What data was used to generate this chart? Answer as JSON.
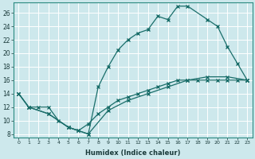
{
  "xlabel": "Humidex (Indice chaleur)",
  "ylabel": "",
  "xlim": [
    -0.5,
    23.5
  ],
  "ylim": [
    7.5,
    27.5
  ],
  "xticks": [
    0,
    1,
    2,
    3,
    4,
    5,
    6,
    7,
    8,
    9,
    10,
    11,
    12,
    13,
    14,
    15,
    16,
    17,
    18,
    19,
    20,
    21,
    22,
    23
  ],
  "yticks": [
    8,
    10,
    12,
    14,
    16,
    18,
    20,
    22,
    24,
    26
  ],
  "bg_color": "#cde8ec",
  "line_color": "#1a6e6a",
  "line1_x": [
    0,
    1,
    2,
    3,
    4,
    5,
    6,
    7,
    8,
    9,
    10,
    11,
    12,
    13,
    14,
    15,
    16,
    17,
    18,
    19,
    20,
    21,
    22,
    23
  ],
  "line1_y": [
    14,
    12,
    12,
    12,
    10,
    9,
    8.5,
    9.5,
    11,
    12,
    13,
    13.5,
    14,
    14.5,
    15,
    15.5,
    16,
    16,
    16,
    16,
    16,
    16,
    16,
    16
  ],
  "line2_x": [
    0,
    1,
    3,
    5,
    6,
    7,
    8,
    9,
    10,
    11,
    12,
    13,
    14,
    15,
    16,
    17,
    19,
    20,
    21,
    22,
    23
  ],
  "line2_y": [
    14,
    12,
    11,
    9,
    8.5,
    8,
    15,
    18,
    20.5,
    22,
    23,
    23.5,
    25.5,
    25,
    27,
    27,
    25,
    24,
    21,
    18.5,
    16
  ],
  "line3_x": [
    0,
    1,
    3,
    5,
    7,
    9,
    11,
    13,
    15,
    17,
    19,
    21,
    23
  ],
  "line3_y": [
    14,
    12,
    11,
    9,
    8,
    11.5,
    13,
    14,
    15,
    16,
    16.5,
    16.5,
    16
  ]
}
